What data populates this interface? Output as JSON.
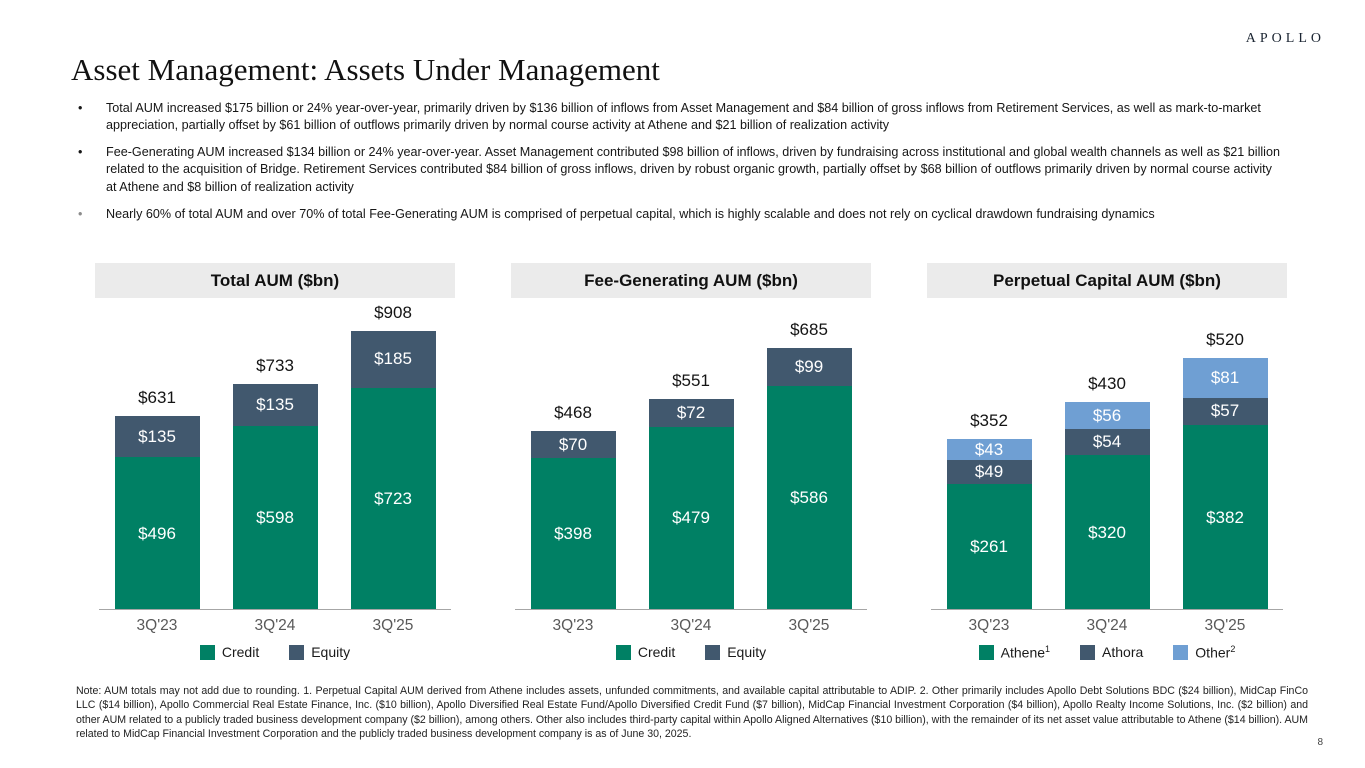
{
  "header": {
    "logo": "APOLLO",
    "title": "Asset Management: Assets Under Management"
  },
  "bullets": [
    {
      "marker_color": "#161616",
      "text": "Total AUM increased $175 billion or 24% year-over-year, primarily driven by $136 billion of inflows from Asset Management and $84 billion of gross inflows from Retirement Services, as well as mark-to-market appreciation, partially offset by $61 billion of outflows primarily driven by normal course activity at Athene and $21 billion of realization activity"
    },
    {
      "marker_color": "#161616",
      "text": "Fee-Generating AUM increased $134 billion or 24% year-over-year. Asset Management contributed $98 billion of inflows, driven by fundraising across institutional and global wealth channels as well as $21 billion related to the acquisition of Bridge. Retirement Services contributed $84 billion of gross inflows, driven by robust organic growth, partially offset by $68 billion of outflows primarily driven by normal course activity at Athene and $8 billion of realization activity"
    },
    {
      "marker_color": "#8c8c8c",
      "text": "Nearly 60% of total AUM and over 70% of total Fee-Generating AUM is comprised of perpetual capital, which is highly scalable and does not rely on cyclical drawdown fundraising dynamics"
    }
  ],
  "chart_data": [
    {
      "type": "bar",
      "stacked": true,
      "title": "Total AUM ($bn)",
      "categories": [
        "3Q'23",
        "3Q'24",
        "3Q'25"
      ],
      "series": [
        {
          "name": "Credit",
          "color": "#008064",
          "values": [
            496,
            598,
            723
          ]
        },
        {
          "name": "Equity",
          "color": "#41586e",
          "values": [
            135,
            135,
            185
          ]
        }
      ],
      "totals": [
        631,
        733,
        908
      ],
      "value_prefix": "$",
      "ylim": [
        0,
        975
      ],
      "grid": false,
      "legend_position": "bottom",
      "legend": [
        {
          "label": "Credit",
          "sup": ""
        },
        {
          "label": "Equity",
          "sup": ""
        }
      ]
    },
    {
      "type": "bar",
      "stacked": true,
      "title": "Fee-Generating AUM ($bn)",
      "categories": [
        "3Q'23",
        "3Q'24",
        "3Q'25"
      ],
      "series": [
        {
          "name": "Credit",
          "color": "#008064",
          "values": [
            398,
            479,
            586
          ]
        },
        {
          "name": "Equity",
          "color": "#41586e",
          "values": [
            70,
            72,
            99
          ]
        }
      ],
      "totals": [
        468,
        551,
        685
      ],
      "value_prefix": "$",
      "ylim": [
        0,
        785
      ],
      "grid": false,
      "legend_position": "bottom",
      "legend": [
        {
          "label": "Credit",
          "sup": ""
        },
        {
          "label": "Equity",
          "sup": ""
        }
      ]
    },
    {
      "type": "bar",
      "stacked": true,
      "title": "Perpetual Capital AUM ($bn)",
      "categories": [
        "3Q'23",
        "3Q'24",
        "3Q'25"
      ],
      "series": [
        {
          "name": "Athene",
          "color": "#008064",
          "values": [
            261,
            320,
            382
          ]
        },
        {
          "name": "Athora",
          "color": "#41586e",
          "values": [
            49,
            54,
            57
          ]
        },
        {
          "name": "Other",
          "color": "#6f9fd3",
          "values": [
            43,
            56,
            81
          ]
        }
      ],
      "totals": [
        352,
        430,
        520
      ],
      "value_prefix": "$",
      "ylim": [
        0,
        620
      ],
      "grid": false,
      "legend_position": "bottom",
      "legend": [
        {
          "label": "Athene",
          "sup": "1"
        },
        {
          "label": "Athora",
          "sup": ""
        },
        {
          "label": "Other",
          "sup": "2"
        }
      ]
    }
  ],
  "footnote": "Note: AUM totals may not add due to rounding. 1. Perpetual Capital AUM derived from Athene includes assets, unfunded commitments, and available capital attributable to ADIP. 2. Other primarily includes Apollo Debt Solutions BDC ($24 billion), MidCap FinCo LLC ($14 billion), Apollo Commercial Real Estate Finance, Inc. ($10 billion), Apollo Diversified Real Estate Fund/Apollo Diversified Credit Fund ($7 billion), MidCap Financial Investment Corporation ($4 billion), Apollo Realty Income Solutions, Inc. ($2 billion) and other AUM related to a publicly traded business development company ($2 billion), among others. Other also includes third-party capital within Apollo Aligned Alternatives ($10 billion), with the remainder of its net asset value attributable to Athene ($14 billion). AUM related to MidCap Financial Investment Corporation and the publicly traded business development company is as of June 30, 2025.",
  "page_number": "8",
  "colors": {
    "credit_green": "#008064",
    "equity_slate": "#41586e",
    "other_blue": "#6f9fd3",
    "chart_header_bg": "#ebebeb",
    "axis_line": "#a6a6a6",
    "tick_text": "#595959"
  }
}
